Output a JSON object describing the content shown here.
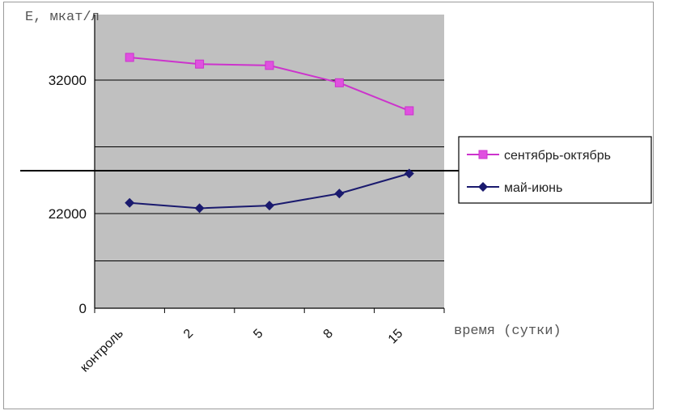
{
  "chart_data": {
    "type": "line",
    "title": "",
    "ylabel": "Е, мкат/л",
    "xlabel": "время (сутки)",
    "categories": [
      "контроль",
      "2",
      "5",
      "8",
      "15"
    ],
    "y_ticks": [
      {
        "label": "32000",
        "value": 32000
      },
      {
        "label": "22000",
        "value": 22000
      },
      {
        "label": "0",
        "value": 0
      }
    ],
    "ylim": [
      0,
      37000
    ],
    "grid": true,
    "legend_position": "right",
    "series": [
      {
        "name": "сентябрь-октябрь",
        "values": [
          33700,
          33200,
          33100,
          31800,
          29700
        ],
        "color": "#cc33cc",
        "marker": "square"
      },
      {
        "name": "май-июнь",
        "values": [
          22800,
          22400,
          22600,
          23500,
          25000
        ],
        "color": "#1a1a6e",
        "marker": "diamond"
      }
    ]
  }
}
